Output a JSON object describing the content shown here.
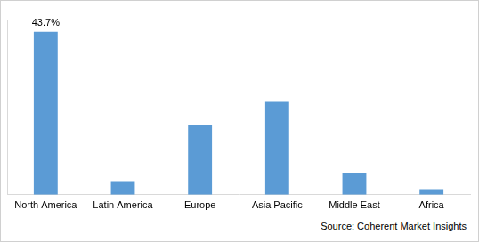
{
  "chart_data": {
    "type": "bar",
    "categories": [
      "North America",
      "Latin America",
      "Europe",
      "Asia Pacific",
      "Middle East",
      "Africa"
    ],
    "values": [
      43.7,
      3.4,
      18.8,
      24.9,
      5.9,
      1.5
    ],
    "value_labels": [
      "43.7%",
      null,
      null,
      null,
      null,
      null
    ],
    "data_labels": true,
    "color": "#5b9bd5",
    "ylim": [
      0,
      47
    ],
    "grid": false,
    "tick_labels": "x",
    "source": "Source: Coherent Market Insights"
  }
}
